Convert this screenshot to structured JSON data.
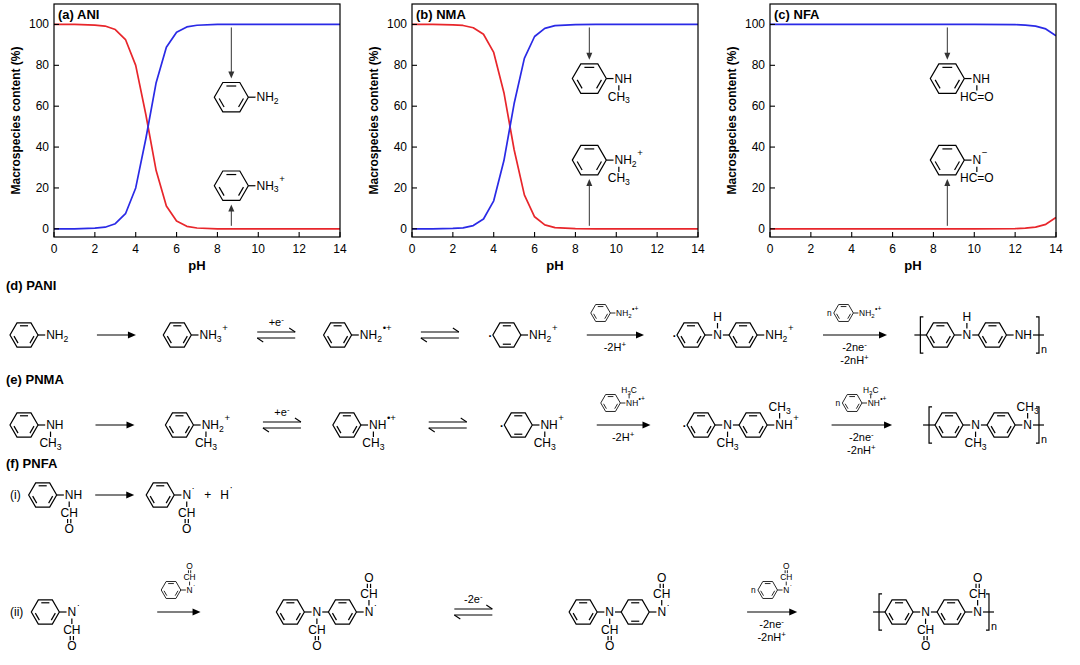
{
  "chart_data": [
    {
      "type": "line",
      "title": "(a) ANI",
      "x_label": "pH",
      "y_label": "Macrospecies content (%)",
      "x": [
        0,
        1,
        2,
        2.5,
        3,
        3.5,
        4,
        4.5,
        5,
        5.5,
        6,
        6.5,
        7,
        8,
        9,
        10,
        11,
        12,
        13,
        14
      ],
      "xlim": [
        0,
        14
      ],
      "xticks": [
        0,
        2,
        4,
        6,
        8,
        10,
        12,
        14
      ],
      "ylim": [
        -4,
        110
      ],
      "yticks": [
        0,
        20,
        40,
        60,
        80,
        100
      ],
      "series": [
        {
          "color": "#e8262b",
          "values": [
            100,
            100,
            99.7,
            99.2,
            97.5,
            92.6,
            80,
            55.7,
            28.5,
            11.2,
            3.8,
            1.2,
            0.4,
            0,
            0,
            0,
            0,
            0,
            0,
            0
          ]
        },
        {
          "color": "#2a2ae6",
          "values": [
            0,
            0,
            0.3,
            0.8,
            2.5,
            7.4,
            20,
            44.3,
            71.5,
            88.8,
            96.2,
            98.8,
            99.6,
            100,
            100,
            100,
            100,
            100,
            100,
            100
          ]
        }
      ],
      "annotations": [
        {
          "series": 1,
          "unit": {
            "end": {
              "atom": "NH2"
            }
          }
        },
        {
          "series": 0,
          "unit": {
            "end": {
              "atom": "NH3",
              "charge": "+"
            }
          }
        }
      ]
    },
    {
      "type": "line",
      "title": "(b) NMA",
      "x_label": "pH",
      "y_label": "Macrospecies content (%)",
      "x": [
        0,
        1,
        2,
        2.5,
        3,
        3.5,
        4,
        4.5,
        5,
        5.5,
        6,
        6.5,
        7,
        8,
        9,
        10,
        11,
        12,
        13,
        14
      ],
      "xlim": [
        0,
        14
      ],
      "xticks": [
        0,
        2,
        4,
        6,
        8,
        10,
        12,
        14
      ],
      "ylim": [
        -4,
        110
      ],
      "yticks": [
        0,
        20,
        40,
        60,
        80,
        100
      ],
      "series": [
        {
          "color": "#e8262b",
          "values": [
            100,
            100,
            99.8,
            99.5,
            98.4,
            95.2,
            86.3,
            66.6,
            38.7,
            16.6,
            5.9,
            1.9,
            0.6,
            0.1,
            0,
            0,
            0,
            0,
            0,
            0
          ]
        },
        {
          "color": "#2a2ae6",
          "values": [
            0,
            0,
            0.2,
            0.5,
            1.6,
            4.8,
            13.7,
            33.4,
            61.3,
            83.4,
            94.1,
            98.1,
            99.4,
            99.9,
            100,
            100,
            100,
            100,
            100,
            100
          ]
        }
      ],
      "annotations": [
        {
          "series": 1,
          "unit": {
            "end": {
              "atom": "NH",
              "bottom": "CH3"
            }
          }
        },
        {
          "series": 0,
          "unit": {
            "end": {
              "atom": "NH2",
              "charge": "+",
              "bottom": "CH3"
            }
          }
        }
      ]
    },
    {
      "type": "line",
      "title": "(c) NFA",
      "x_label": "pH",
      "y_label": "Macrospecies content (%)",
      "x": [
        0,
        2,
        4,
        6,
        8,
        10,
        12,
        12.5,
        13,
        13.5,
        14
      ],
      "xlim": [
        0,
        14
      ],
      "xticks": [
        0,
        2,
        4,
        6,
        8,
        10,
        12,
        14
      ],
      "ylim": [
        -4,
        110
      ],
      "yticks": [
        0,
        20,
        40,
        60,
        80,
        100
      ],
      "series": [
        {
          "color": "#e8262b",
          "values": [
            0,
            0,
            0,
            0,
            0,
            0,
            0.1,
            0.3,
            0.8,
            2.2,
            5.5
          ]
        },
        {
          "color": "#2a2ae6",
          "values": [
            100,
            100,
            100,
            100,
            100,
            100,
            99.9,
            99.7,
            99.2,
            97.8,
            94.5
          ]
        }
      ],
      "annotations": [
        {
          "series": 1,
          "unit": {
            "end": {
              "atom": "NH",
              "bottom": "HC=O"
            }
          }
        },
        {
          "series": 0,
          "unit": {
            "end": {
              "atom": "N",
              "charge": "−",
              "bottom": "HC=O"
            }
          }
        }
      ]
    }
  ],
  "schemes": [
    {
      "label": "(d) PANI",
      "rows": [
        {
          "items": [
            {
              "kind": "unit",
              "end": {
                "atom": "NH2"
              }
            },
            {
              "kind": "arrow",
              "style": "forward"
            },
            {
              "kind": "unit",
              "end": {
                "atom": "NH3",
                "charge": "+"
              }
            },
            {
              "kind": "arrow",
              "style": "reversible",
              "above": [
                "+e-"
              ]
            },
            {
              "kind": "unit",
              "end": {
                "atom": "NH2",
                "charge": "•+"
              }
            },
            {
              "kind": "arrow",
              "style": "reversible"
            },
            {
              "kind": "unit",
              "left_radical": "·",
              "quinoid": [
                0
              ],
              "end": {
                "atom": "NH2",
                "charge": "+"
              }
            },
            {
              "kind": "arrow",
              "style": "forward",
              "reagent": {
                "end": {
                  "atom": "NH2",
                  "charge": "•+"
                }
              },
              "below": [
                "-2H+"
              ]
            },
            {
              "kind": "unit",
              "left_radical": "·",
              "bridges": [
                {
                  "atom": "N",
                  "top": "H"
                }
              ],
              "end": {
                "atom": "NH2",
                "charge": "+"
              }
            },
            {
              "kind": "arrow",
              "style": "forward",
              "reagent": {
                "count": "n",
                "end": {
                  "atom": "NH2",
                  "charge": "•+"
                }
              },
              "below": [
                "-2ne-",
                "-2nH+"
              ]
            },
            {
              "kind": "unit",
              "bracket": true,
              "repeat": "n",
              "bridges": [
                {
                  "atom": "N",
                  "top": "H"
                }
              ],
              "end": {
                "atom": "NH"
              }
            }
          ]
        }
      ]
    },
    {
      "label": "(e) PNMA",
      "rows": [
        {
          "items": [
            {
              "kind": "unit",
              "end": {
                "atom": "NH",
                "bottom": "CH3"
              }
            },
            {
              "kind": "arrow",
              "style": "forward"
            },
            {
              "kind": "unit",
              "end": {
                "atom": "NH2",
                "charge": "+",
                "bottom": "CH3"
              }
            },
            {
              "kind": "arrow",
              "style": "reversible",
              "above": [
                "+e-"
              ]
            },
            {
              "kind": "unit",
              "end": {
                "atom": "NH",
                "charge": "•+",
                "bottom": "CH3"
              }
            },
            {
              "kind": "arrow",
              "style": "reversible"
            },
            {
              "kind": "unit",
              "left_radical": "·",
              "quinoid": [
                0
              ],
              "end": {
                "atom": "NH",
                "charge": "+",
                "bottom": "CH3"
              }
            },
            {
              "kind": "arrow",
              "style": "forward",
              "reagent": {
                "end": {
                  "atom": "NH",
                  "charge": "•+",
                  "top": "H3C"
                }
              },
              "below": [
                "-2H+"
              ]
            },
            {
              "kind": "unit",
              "left_radical": "·",
              "bridges": [
                {
                  "atom": "N",
                  "bottom": "CH3"
                }
              ],
              "end": {
                "atom": "NH",
                "charge": "+",
                "top": "CH3"
              }
            },
            {
              "kind": "arrow",
              "style": "forward",
              "reagent": {
                "count": "n",
                "end": {
                  "atom": "NH",
                  "charge": "•+",
                  "top": "H3C"
                }
              },
              "below": [
                "-2ne-",
                "-2nH+"
              ]
            },
            {
              "kind": "unit",
              "bracket": true,
              "repeat": "n",
              "bridges": [
                {
                  "atom": "N",
                  "bottom": "CH3"
                }
              ],
              "end": {
                "atom": "N",
                "top": "CH3"
              }
            }
          ]
        }
      ]
    },
    {
      "label": "(f) PNFA",
      "rows": [
        {
          "tag": "(i)",
          "items": [
            {
              "kind": "unit",
              "end": {
                "atom": "NH",
                "bottom": "CH",
                "bottom2": "O"
              }
            },
            {
              "kind": "arrow",
              "style": "forward"
            },
            {
              "kind": "unit",
              "end": {
                "atom": "N",
                "charge": "·",
                "bottom": "CH",
                "bottom2": "O"
              }
            },
            {
              "kind": "text",
              "text": "+"
            },
            {
              "kind": "text",
              "text": "H",
              "charge": "·"
            }
          ]
        },
        {
          "tag": "(ii)",
          "items": [
            {
              "kind": "unit",
              "end": {
                "atom": "N",
                "charge": "·",
                "bottom": "CH",
                "bottom2": "O"
              }
            },
            {
              "kind": "arrow",
              "style": "forward",
              "reagent": {
                "end": {
                  "atom": "N",
                  "charge": "·",
                  "top": "CH",
                  "top2": "O"
                }
              }
            },
            {
              "kind": "unit",
              "bridges": [
                {
                  "atom": "N",
                  "bottom": "CH",
                  "bottom2": "O"
                }
              ],
              "end": {
                "atom": "N",
                "charge": "·",
                "top": "CH",
                "top2": "O"
              }
            },
            {
              "kind": "arrow",
              "style": "reversible",
              "above": [
                "-2e-"
              ]
            },
            {
              "kind": "unit",
              "quinoid": [
                1
              ],
              "bridges": [
                {
                  "atom": "N",
                  "bottom": "CH",
                  "bottom2": "O"
                }
              ],
              "end": {
                "atom": "N",
                "charge": "·",
                "top": "CH",
                "top2": "O"
              }
            },
            {
              "kind": "arrow",
              "style": "forward",
              "reagent": {
                "count": "n",
                "end": {
                  "atom": "N",
                  "charge": "·",
                  "top": "CH",
                  "top2": "O"
                }
              },
              "below": [
                "-2ne-",
                "-2nH+"
              ]
            },
            {
              "kind": "unit",
              "bracket": true,
              "repeat": "n",
              "bridges": [
                {
                  "atom": "N",
                  "bottom": "CH",
                  "bottom2": "O"
                }
              ],
              "end": {
                "atom": "N",
                "top": "CH",
                "top2": "O"
              }
            }
          ]
        }
      ]
    }
  ]
}
